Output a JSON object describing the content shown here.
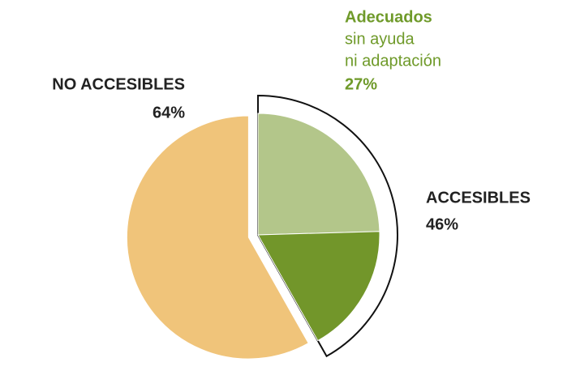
{
  "chart_data": {
    "type": "pie",
    "categories": [
      "NO ACCESIBLES",
      "Adecuados",
      null
    ],
    "values": [
      64,
      27,
      19
    ],
    "value_labels": [
      "64%",
      "27%",
      null
    ],
    "colors": [
      "#f0c47a",
      "#b3c68a",
      "#72962a"
    ],
    "annotations": [
      "sin ayuda",
      "ni adaptación"
    ],
    "group": {
      "label": "ACCESIBLES",
      "value": 46,
      "value_label": "46%"
    }
  }
}
